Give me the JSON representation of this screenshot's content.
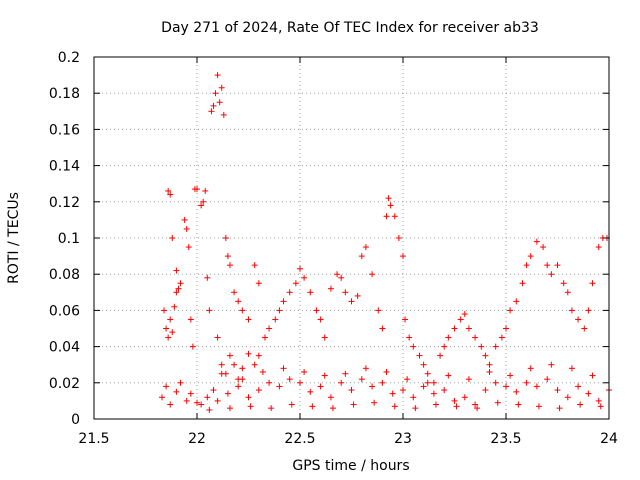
{
  "chart_data": {
    "type": "scatter",
    "title": "Day 271 of 2024, Rate Of TEC Index for receiver ab33",
    "xlabel": "GPS time / hours",
    "ylabel": "ROTI / TECUs",
    "xlim": [
      21.5,
      24
    ],
    "ylim": [
      0,
      0.2
    ],
    "x_ticks": [
      21.5,
      22,
      22.5,
      23,
      23.5,
      24
    ],
    "x_tick_labels": [
      "21.5",
      "22",
      "22.5",
      "23",
      "23.5",
      "24"
    ],
    "y_ticks": [
      0,
      0.02,
      0.04,
      0.06,
      0.08,
      0.1,
      0.12,
      0.14,
      0.16,
      0.18,
      0.2
    ],
    "y_tick_labels": [
      "0",
      "0.02",
      "0.04",
      "0.06",
      "0.08",
      "0.1",
      "0.12",
      "0.14",
      "0.16",
      "0.18",
      "0.2"
    ],
    "grid": true,
    "marker": "plus",
    "marker_color": "#ff0000",
    "series": [
      {
        "name": "ROTI",
        "points": [
          [
            21.83,
            0.012
          ],
          [
            21.85,
            0.018
          ],
          [
            21.87,
            0.008
          ],
          [
            21.9,
            0.015
          ],
          [
            21.92,
            0.02
          ],
          [
            21.95,
            0.01
          ],
          [
            21.97,
            0.014
          ],
          [
            22.0,
            0.009
          ],
          [
            21.84,
            0.06
          ],
          [
            21.85,
            0.05
          ],
          [
            21.86,
            0.045
          ],
          [
            21.87,
            0.055
          ],
          [
            21.88,
            0.048
          ],
          [
            21.89,
            0.062
          ],
          [
            21.9,
            0.07
          ],
          [
            21.91,
            0.072
          ],
          [
            21.86,
            0.126
          ],
          [
            21.87,
            0.124
          ],
          [
            21.88,
            0.1
          ],
          [
            21.9,
            0.082
          ],
          [
            21.92,
            0.075
          ],
          [
            21.94,
            0.11
          ],
          [
            21.95,
            0.105
          ],
          [
            21.96,
            0.095
          ],
          [
            21.97,
            0.055
          ],
          [
            21.98,
            0.04
          ],
          [
            21.99,
            0.127
          ],
          [
            22.0,
            0.127
          ],
          [
            22.02,
            0.118
          ],
          [
            22.03,
            0.12
          ],
          [
            22.04,
            0.126
          ],
          [
            22.05,
            0.078
          ],
          [
            22.06,
            0.06
          ],
          [
            22.07,
            0.17
          ],
          [
            22.08,
            0.173
          ],
          [
            22.09,
            0.18
          ],
          [
            22.1,
            0.19
          ],
          [
            22.11,
            0.175
          ],
          [
            22.12,
            0.183
          ],
          [
            22.13,
            0.168
          ],
          [
            22.14,
            0.1
          ],
          [
            22.15,
            0.09
          ],
          [
            22.16,
            0.085
          ],
          [
            22.18,
            0.07
          ],
          [
            22.2,
            0.065
          ],
          [
            22.22,
            0.06
          ],
          [
            22.25,
            0.055
          ],
          [
            22.28,
            0.085
          ],
          [
            22.3,
            0.075
          ],
          [
            22.1,
            0.045
          ],
          [
            22.12,
            0.03
          ],
          [
            22.14,
            0.025
          ],
          [
            22.16,
            0.035
          ],
          [
            22.18,
            0.03
          ],
          [
            22.2,
            0.022
          ],
          [
            22.22,
            0.028
          ],
          [
            22.25,
            0.036
          ],
          [
            22.28,
            0.03
          ],
          [
            22.3,
            0.035
          ],
          [
            22.33,
            0.045
          ],
          [
            22.35,
            0.05
          ],
          [
            22.38,
            0.055
          ],
          [
            22.4,
            0.06
          ],
          [
            22.42,
            0.065
          ],
          [
            22.45,
            0.07
          ],
          [
            22.48,
            0.075
          ],
          [
            22.5,
            0.083
          ],
          [
            22.52,
            0.078
          ],
          [
            22.55,
            0.07
          ],
          [
            22.58,
            0.06
          ],
          [
            22.6,
            0.055
          ],
          [
            22.62,
            0.045
          ],
          [
            22.65,
            0.072
          ],
          [
            22.68,
            0.08
          ],
          [
            22.7,
            0.078
          ],
          [
            22.72,
            0.07
          ],
          [
            22.75,
            0.065
          ],
          [
            22.78,
            0.068
          ],
          [
            22.8,
            0.09
          ],
          [
            22.82,
            0.095
          ],
          [
            22.85,
            0.08
          ],
          [
            22.88,
            0.06
          ],
          [
            22.9,
            0.05
          ],
          [
            22.92,
            0.112
          ],
          [
            22.93,
            0.122
          ],
          [
            22.94,
            0.118
          ],
          [
            22.96,
            0.112
          ],
          [
            22.98,
            0.1
          ],
          [
            23.0,
            0.09
          ],
          [
            23.01,
            0.055
          ],
          [
            23.03,
            0.045
          ],
          [
            23.05,
            0.04
          ],
          [
            23.08,
            0.035
          ],
          [
            23.1,
            0.03
          ],
          [
            23.12,
            0.025
          ],
          [
            23.15,
            0.02
          ],
          [
            23.18,
            0.035
          ],
          [
            23.2,
            0.04
          ],
          [
            23.22,
            0.045
          ],
          [
            23.25,
            0.05
          ],
          [
            23.28,
            0.055
          ],
          [
            23.3,
            0.058
          ],
          [
            23.32,
            0.05
          ],
          [
            23.35,
            0.045
          ],
          [
            23.38,
            0.04
          ],
          [
            23.4,
            0.035
          ],
          [
            23.42,
            0.03
          ],
          [
            23.45,
            0.04
          ],
          [
            23.48,
            0.045
          ],
          [
            23.5,
            0.05
          ],
          [
            23.52,
            0.06
          ],
          [
            23.55,
            0.065
          ],
          [
            23.58,
            0.075
          ],
          [
            23.6,
            0.085
          ],
          [
            23.62,
            0.09
          ],
          [
            23.65,
            0.098
          ],
          [
            23.68,
            0.095
          ],
          [
            23.7,
            0.085
          ],
          [
            23.72,
            0.08
          ],
          [
            23.75,
            0.085
          ],
          [
            23.78,
            0.075
          ],
          [
            23.8,
            0.07
          ],
          [
            23.82,
            0.06
          ],
          [
            23.85,
            0.055
          ],
          [
            23.88,
            0.05
          ],
          [
            23.9,
            0.06
          ],
          [
            23.92,
            0.075
          ],
          [
            23.95,
            0.095
          ],
          [
            23.97,
            0.1
          ],
          [
            23.99,
            0.1
          ],
          [
            22.02,
            0.008
          ],
          [
            22.05,
            0.012
          ],
          [
            22.08,
            0.016
          ],
          [
            22.1,
            0.01
          ],
          [
            22.15,
            0.014
          ],
          [
            22.2,
            0.018
          ],
          [
            22.25,
            0.012
          ],
          [
            22.3,
            0.016
          ],
          [
            22.35,
            0.02
          ],
          [
            22.4,
            0.018
          ],
          [
            22.45,
            0.022
          ],
          [
            22.5,
            0.02
          ],
          [
            22.55,
            0.015
          ],
          [
            22.6,
            0.018
          ],
          [
            22.65,
            0.012
          ],
          [
            22.7,
            0.02
          ],
          [
            22.75,
            0.016
          ],
          [
            22.8,
            0.022
          ],
          [
            22.85,
            0.018
          ],
          [
            22.9,
            0.02
          ],
          [
            22.95,
            0.014
          ],
          [
            23.0,
            0.016
          ],
          [
            23.05,
            0.012
          ],
          [
            23.1,
            0.018
          ],
          [
            23.15,
            0.014
          ],
          [
            23.2,
            0.016
          ],
          [
            23.25,
            0.01
          ],
          [
            23.3,
            0.012
          ],
          [
            23.35,
            0.008
          ],
          [
            23.4,
            0.016
          ],
          [
            23.45,
            0.02
          ],
          [
            23.5,
            0.018
          ],
          [
            23.55,
            0.015
          ],
          [
            23.6,
            0.02
          ],
          [
            23.65,
            0.018
          ],
          [
            23.7,
            0.022
          ],
          [
            23.75,
            0.016
          ],
          [
            23.8,
            0.012
          ],
          [
            23.85,
            0.018
          ],
          [
            23.9,
            0.014
          ],
          [
            23.95,
            0.01
          ],
          [
            24.0,
            0.016
          ],
          [
            22.12,
            0.025
          ],
          [
            22.22,
            0.022
          ],
          [
            22.32,
            0.026
          ],
          [
            22.42,
            0.028
          ],
          [
            22.52,
            0.026
          ],
          [
            22.62,
            0.024
          ],
          [
            22.72,
            0.025
          ],
          [
            22.82,
            0.028
          ],
          [
            22.92,
            0.026
          ],
          [
            23.02,
            0.022
          ],
          [
            23.12,
            0.02
          ],
          [
            23.22,
            0.024
          ],
          [
            23.32,
            0.022
          ],
          [
            23.42,
            0.026
          ],
          [
            23.52,
            0.024
          ],
          [
            23.62,
            0.028
          ],
          [
            23.72,
            0.03
          ],
          [
            23.82,
            0.028
          ],
          [
            23.92,
            0.024
          ],
          [
            22.06,
            0.005
          ],
          [
            22.16,
            0.006
          ],
          [
            22.26,
            0.007
          ],
          [
            22.36,
            0.006
          ],
          [
            22.46,
            0.008
          ],
          [
            22.56,
            0.007
          ],
          [
            22.66,
            0.006
          ],
          [
            22.76,
            0.008
          ],
          [
            22.86,
            0.009
          ],
          [
            22.96,
            0.007
          ],
          [
            23.06,
            0.006
          ],
          [
            23.16,
            0.008
          ],
          [
            23.26,
            0.007
          ],
          [
            23.36,
            0.006
          ],
          [
            23.46,
            0.009
          ],
          [
            23.56,
            0.008
          ],
          [
            23.66,
            0.007
          ],
          [
            23.76,
            0.006
          ],
          [
            23.86,
            0.008
          ],
          [
            23.96,
            0.007
          ]
        ]
      }
    ]
  }
}
